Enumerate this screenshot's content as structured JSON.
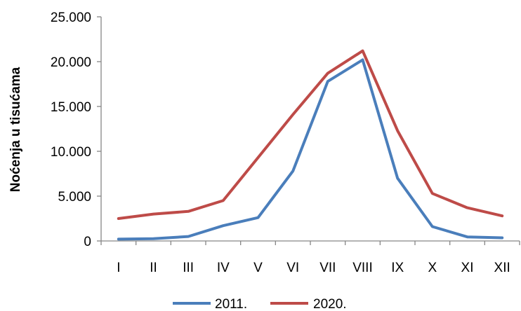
{
  "chart_data": {
    "type": "line",
    "title": "",
    "xlabel": "",
    "ylabel": "Noćenja u tisućama",
    "categories": [
      "I",
      "II",
      "III",
      "IV",
      "V",
      "VI",
      "VII",
      "VIII",
      "IX",
      "X",
      "XI",
      "XII"
    ],
    "ylim": [
      0,
      25000
    ],
    "yticks": [
      "0",
      "5.000",
      "10.000",
      "15.000",
      "20.000",
      "25.000"
    ],
    "ytick_values": [
      0,
      5000,
      10000,
      15000,
      20000,
      25000
    ],
    "grid": false,
    "legend_position": "bottom",
    "series": [
      {
        "name": "2011.",
        "color": "#4a7ebb",
        "values": [
          200,
          250,
          500,
          1700,
          2600,
          7800,
          17800,
          20200,
          7000,
          1600,
          450,
          350
        ]
      },
      {
        "name": "2020.",
        "color": "#be4b48",
        "values": [
          2500,
          3000,
          3300,
          4500,
          9300,
          14100,
          18700,
          21200,
          12300,
          5300,
          3700,
          2800
        ]
      }
    ]
  }
}
